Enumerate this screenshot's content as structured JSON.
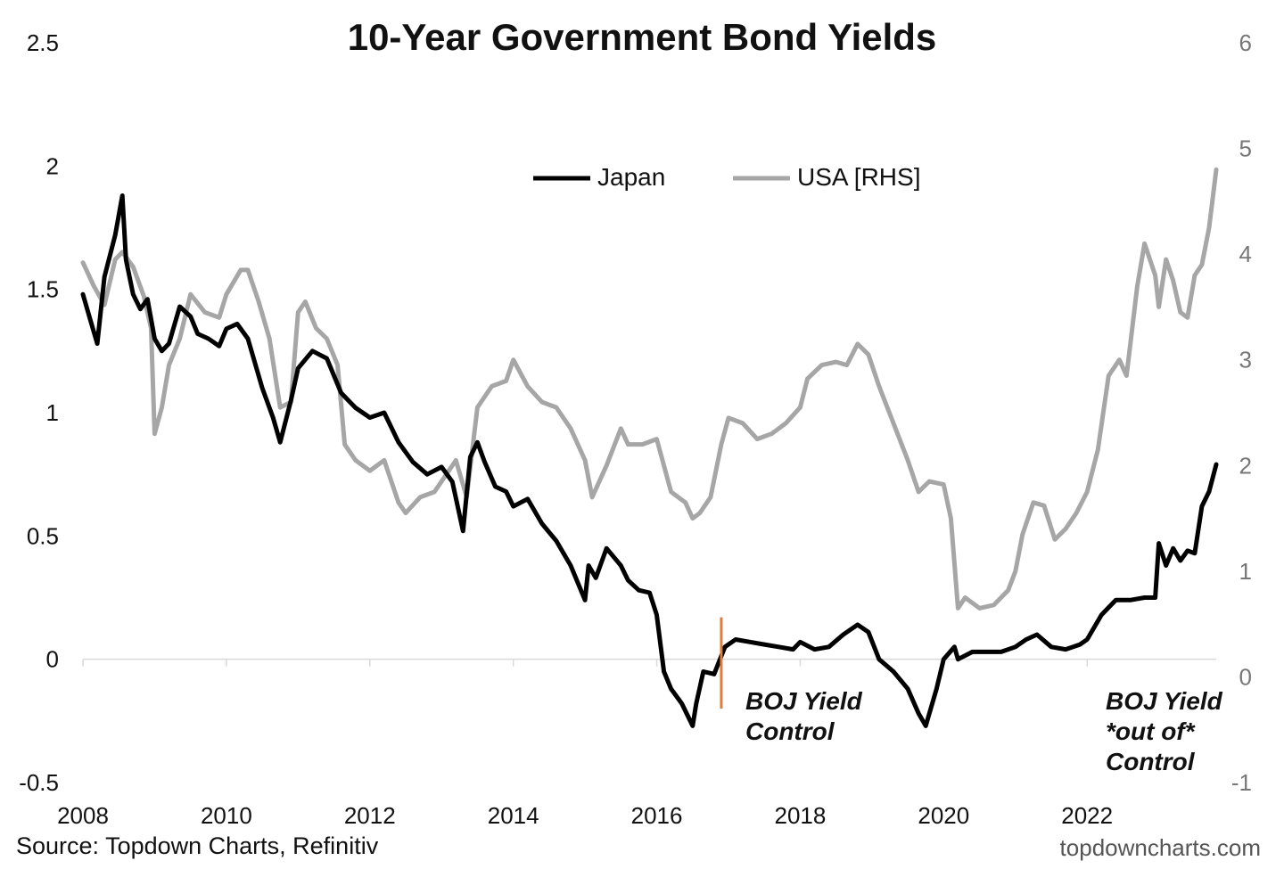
{
  "chart_data": {
    "type": "line",
    "title": "10-Year Government Bond Yields",
    "source": "Source: Topdown Charts, Refinitiv",
    "watermark": "topdowncharts.com",
    "x_tick_labels": [
      "2008",
      "2010",
      "2012",
      "2014",
      "2016",
      "2018",
      "2020",
      "2022"
    ],
    "xlim": [
      2008.0,
      2023.8
    ],
    "y_left": {
      "lim": [
        -0.5,
        2.5
      ],
      "tick_labels": [
        "2.5",
        "2",
        "1.5",
        "1",
        "0.5",
        "0",
        "-0.5"
      ],
      "tick_values": [
        2.5,
        2,
        1.5,
        1,
        0.5,
        0,
        -0.5
      ]
    },
    "y_right": {
      "lim": [
        -1,
        6
      ],
      "tick_labels": [
        "6",
        "5",
        "4",
        "3",
        "2",
        "1",
        "0",
        "-1"
      ],
      "tick_values": [
        6,
        5,
        4,
        3,
        2,
        1,
        0,
        -1
      ]
    },
    "legend": {
      "placement": "top-center"
    },
    "series": [
      {
        "name": "Japan",
        "axis": "left",
        "color": "#000000",
        "x": [
          2008.0,
          2008.1,
          2008.2,
          2008.3,
          2008.45,
          2008.55,
          2008.6,
          2008.7,
          2008.8,
          2008.9,
          2009.0,
          2009.1,
          2009.2,
          2009.35,
          2009.5,
          2009.6,
          2009.75,
          2009.9,
          2010.0,
          2010.15,
          2010.3,
          2010.5,
          2010.65,
          2010.75,
          2010.9,
          2011.0,
          2011.2,
          2011.4,
          2011.6,
          2011.8,
          2012.0,
          2012.2,
          2012.4,
          2012.6,
          2012.8,
          2013.0,
          2013.15,
          2013.3,
          2013.4,
          2013.5,
          2013.6,
          2013.75,
          2013.9,
          2014.0,
          2014.2,
          2014.4,
          2014.6,
          2014.8,
          2015.0,
          2015.05,
          2015.15,
          2015.3,
          2015.5,
          2015.6,
          2015.75,
          2015.9,
          2016.0,
          2016.1,
          2016.2,
          2016.35,
          2016.5,
          2016.55,
          2016.65,
          2016.8,
          2016.95,
          2017.1,
          2017.3,
          2017.5,
          2017.7,
          2017.9,
          2018.0,
          2018.2,
          2018.4,
          2018.6,
          2018.8,
          2018.95,
          2019.1,
          2019.3,
          2019.5,
          2019.65,
          2019.75,
          2019.9,
          2020.0,
          2020.15,
          2020.2,
          2020.4,
          2020.6,
          2020.8,
          2021.0,
          2021.15,
          2021.3,
          2021.5,
          2021.7,
          2021.9,
          2022.0,
          2022.2,
          2022.4,
          2022.6,
          2022.8,
          2022.95,
          2023.0,
          2023.1,
          2023.2,
          2023.3,
          2023.4,
          2023.5,
          2023.6,
          2023.7,
          2023.8
        ],
        "values": [
          1.48,
          1.38,
          1.28,
          1.55,
          1.72,
          1.88,
          1.62,
          1.48,
          1.42,
          1.46,
          1.3,
          1.25,
          1.28,
          1.43,
          1.39,
          1.32,
          1.3,
          1.27,
          1.34,
          1.36,
          1.3,
          1.1,
          0.98,
          0.88,
          1.05,
          1.18,
          1.25,
          1.22,
          1.08,
          1.02,
          0.98,
          1.0,
          0.88,
          0.8,
          0.75,
          0.78,
          0.72,
          0.52,
          0.82,
          0.88,
          0.8,
          0.7,
          0.68,
          0.62,
          0.65,
          0.55,
          0.48,
          0.38,
          0.24,
          0.38,
          0.33,
          0.45,
          0.38,
          0.32,
          0.28,
          0.27,
          0.18,
          -0.05,
          -0.12,
          -0.18,
          -0.27,
          -0.18,
          -0.05,
          -0.06,
          0.05,
          0.08,
          0.07,
          0.06,
          0.05,
          0.04,
          0.07,
          0.04,
          0.05,
          0.1,
          0.14,
          0.11,
          0.0,
          -0.05,
          -0.12,
          -0.22,
          -0.27,
          -0.12,
          0.0,
          0.05,
          0.0,
          0.03,
          0.03,
          0.03,
          0.05,
          0.08,
          0.1,
          0.05,
          0.04,
          0.06,
          0.08,
          0.18,
          0.24,
          0.24,
          0.25,
          0.25,
          0.47,
          0.38,
          0.45,
          0.4,
          0.44,
          0.43,
          0.62,
          0.68,
          0.79
        ]
      },
      {
        "name": "USA [RHS]",
        "axis": "right",
        "color": "#a6a6a6",
        "x": [
          2008.0,
          2008.15,
          2008.3,
          2008.45,
          2008.55,
          2008.7,
          2008.85,
          2008.95,
          2009.0,
          2009.1,
          2009.2,
          2009.35,
          2009.5,
          2009.7,
          2009.9,
          2010.0,
          2010.2,
          2010.3,
          2010.45,
          2010.6,
          2010.75,
          2010.9,
          2011.0,
          2011.1,
          2011.25,
          2011.4,
          2011.55,
          2011.65,
          2011.8,
          2012.0,
          2012.2,
          2012.4,
          2012.5,
          2012.7,
          2012.9,
          2013.0,
          2013.2,
          2013.35,
          2013.5,
          2013.7,
          2013.9,
          2014.0,
          2014.2,
          2014.4,
          2014.6,
          2014.8,
          2015.0,
          2015.1,
          2015.3,
          2015.5,
          2015.6,
          2015.8,
          2016.0,
          2016.2,
          2016.4,
          2016.5,
          2016.6,
          2016.75,
          2016.9,
          2017.0,
          2017.2,
          2017.4,
          2017.6,
          2017.8,
          2018.0,
          2018.1,
          2018.3,
          2018.5,
          2018.65,
          2018.8,
          2018.95,
          2019.1,
          2019.3,
          2019.5,
          2019.65,
          2019.8,
          2020.0,
          2020.1,
          2020.2,
          2020.3,
          2020.5,
          2020.7,
          2020.9,
          2021.0,
          2021.1,
          2021.25,
          2021.4,
          2021.55,
          2021.7,
          2021.85,
          2022.0,
          2022.15,
          2022.3,
          2022.45,
          2022.55,
          2022.7,
          2022.8,
          2022.95,
          2023.0,
          2023.1,
          2023.2,
          2023.3,
          2023.4,
          2023.5,
          2023.6,
          2023.7,
          2023.8
        ],
        "values": [
          3.92,
          3.7,
          3.52,
          3.95,
          4.02,
          3.88,
          3.6,
          3.3,
          2.3,
          2.55,
          2.95,
          3.2,
          3.62,
          3.45,
          3.4,
          3.62,
          3.85,
          3.85,
          3.55,
          3.2,
          2.55,
          2.6,
          3.45,
          3.55,
          3.3,
          3.2,
          2.95,
          2.2,
          2.05,
          1.95,
          2.05,
          1.65,
          1.55,
          1.7,
          1.75,
          1.85,
          2.05,
          1.7,
          2.55,
          2.75,
          2.8,
          3.0,
          2.75,
          2.6,
          2.55,
          2.35,
          2.05,
          1.7,
          2.0,
          2.35,
          2.2,
          2.2,
          2.25,
          1.75,
          1.65,
          1.5,
          1.55,
          1.7,
          2.2,
          2.45,
          2.4,
          2.25,
          2.3,
          2.4,
          2.55,
          2.82,
          2.95,
          2.98,
          2.95,
          3.15,
          3.05,
          2.75,
          2.4,
          2.05,
          1.75,
          1.85,
          1.82,
          1.5,
          0.65,
          0.75,
          0.65,
          0.68,
          0.82,
          1.0,
          1.35,
          1.65,
          1.62,
          1.3,
          1.4,
          1.55,
          1.75,
          2.15,
          2.85,
          3.0,
          2.85,
          3.7,
          4.1,
          3.8,
          3.5,
          3.95,
          3.75,
          3.45,
          3.4,
          3.8,
          3.9,
          4.25,
          4.8
        ]
      }
    ],
    "annotations": [
      {
        "x": 2016.9,
        "y_left_range": [
          -0.2,
          0.17
        ],
        "color": "#e07b39",
        "lines": [
          "BOJ Yield",
          "Control"
        ]
      },
      {
        "lines": [
          "BOJ Yield",
          "*out of*",
          "Control"
        ]
      }
    ]
  }
}
